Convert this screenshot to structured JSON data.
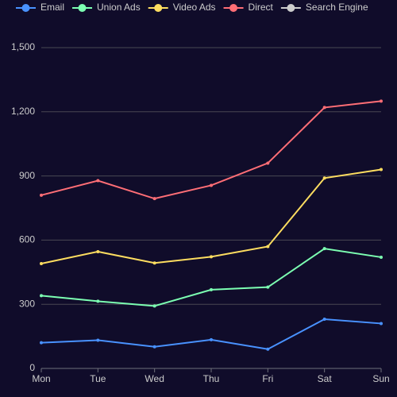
{
  "chart_data": {
    "type": "line",
    "stacked": true,
    "categories": [
      "Mon",
      "Tue",
      "Wed",
      "Thu",
      "Fri",
      "Sat",
      "Sun"
    ],
    "series": [
      {
        "name": "Email",
        "color": "#4992ff",
        "values": [
          120,
          132,
          101,
          134,
          90,
          230,
          210
        ]
      },
      {
        "name": "Union Ads",
        "color": "#7cffb2",
        "values": [
          220,
          182,
          191,
          234,
          290,
          330,
          310
        ]
      },
      {
        "name": "Video Ads",
        "color": "#fddd60",
        "values": [
          150,
          232,
          201,
          154,
          190,
          330,
          410
        ]
      },
      {
        "name": "Direct",
        "color": "#ff6e76",
        "values": [
          320,
          332,
          301,
          334,
          390,
          330,
          320
        ]
      },
      {
        "name": "Search Engine",
        "color": "#cccccc",
        "visible": false
      }
    ],
    "ylim": [
      0,
      1500
    ],
    "yticks": [
      0,
      300,
      600,
      900,
      {
        "value": 1200,
        "label": "1,200"
      },
      {
        "value": 1500,
        "label": "1,500"
      }
    ],
    "grid": true
  }
}
